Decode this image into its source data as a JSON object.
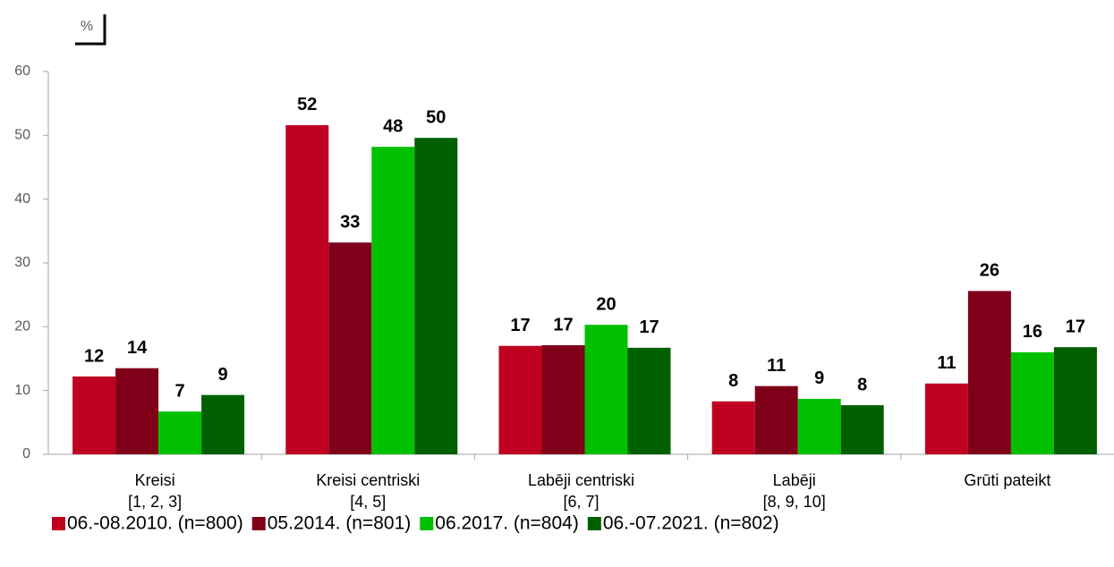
{
  "chart_data": {
    "type": "bar",
    "y_label": "%",
    "categories": [
      [
        "Kreisi",
        "[1, 2, 3]"
      ],
      [
        "Kreisi centriski",
        "[4, 5]"
      ],
      [
        "Labēji centriski",
        "[6, 7]"
      ],
      [
        "Labēji",
        "[8, 9, 10]"
      ],
      [
        "Grūti pateikt"
      ]
    ],
    "series": [
      {
        "name": "06.-08.2010. (n=800)",
        "color": "#c00020",
        "values": [
          12.2,
          51.6,
          17.0,
          8.3,
          11.1
        ],
        "value_labels": [
          "12",
          "52",
          "17",
          "8",
          "11"
        ]
      },
      {
        "name": "05.2014. (n=801)",
        "color": "#80001a",
        "values": [
          13.5,
          33.2,
          17.1,
          10.7,
          25.6
        ],
        "value_labels": [
          "14",
          "33",
          "17",
          "11",
          "26"
        ]
      },
      {
        "name": "06.2017. (n=804)",
        "color": "#00c000",
        "values": [
          6.7,
          48.2,
          20.3,
          8.7,
          16.0
        ],
        "value_labels": [
          "7",
          "48",
          "20",
          "9",
          "16"
        ]
      },
      {
        "name": "06.-07.2021. (n=802)",
        "color": "#006000",
        "values": [
          9.3,
          49.6,
          16.7,
          7.7,
          16.8
        ],
        "value_labels": [
          "9",
          "50",
          "17",
          "8",
          "17"
        ]
      }
    ],
    "ylim": [
      0,
      60
    ],
    "yticks": [
      0,
      10,
      20,
      30,
      40,
      50,
      60
    ],
    "grid": false,
    "legend": "bottom"
  }
}
